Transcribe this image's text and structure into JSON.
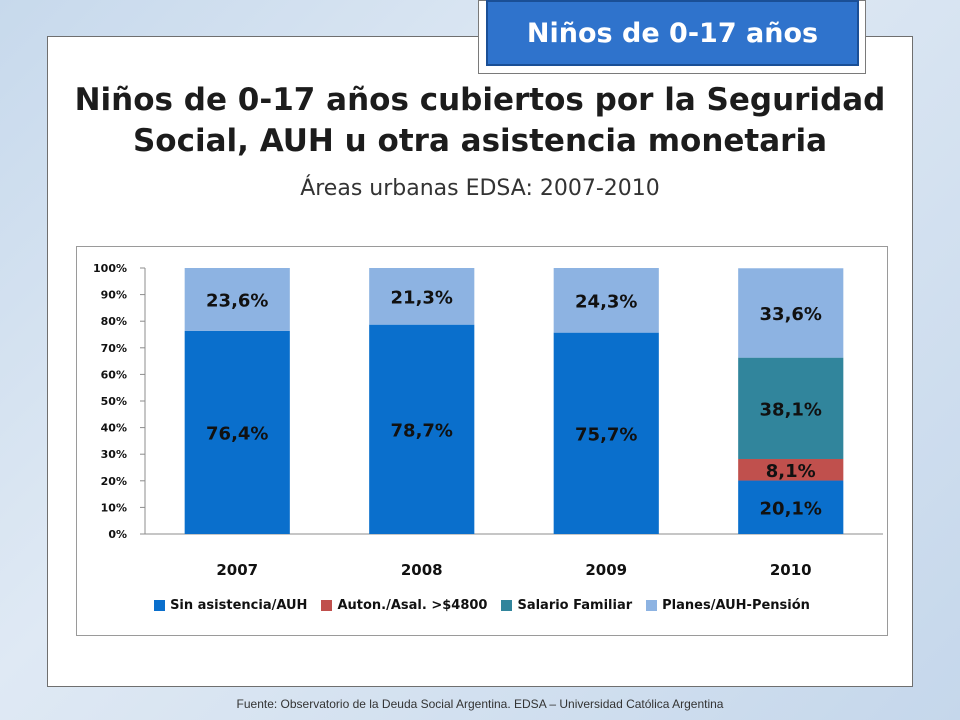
{
  "badge": {
    "label": "Niños de 0-17 años"
  },
  "title": "Niños de 0-17 años cubiertos por la Seguridad Social, AUH u otra asistencia monetaria",
  "subtitle": "Áreas urbanas EDSA: 2007-2010",
  "source": "Fuente:  Observatorio de  la Deuda Social Argentina. EDSA  – Universidad Católica Argentina",
  "colors": {
    "Sin asistencia/AUH": "#0a6fcc",
    "Auton./Asal. >$4800": "#c0504d",
    "Salario Familiar": "#31859c",
    "Planes/AUH-Pensión": "#8db3e2"
  },
  "chart_data": {
    "type": "bar",
    "stacked": true,
    "categories": [
      "2007",
      "2008",
      "2009",
      "2010"
    ],
    "series": [
      {
        "name": "Sin asistencia/AUH",
        "values": [
          76.4,
          78.7,
          75.7,
          20.1
        ],
        "labels": [
          "76,4%",
          "78,7%",
          "75,7%",
          "20,1%"
        ]
      },
      {
        "name": "Auton./Asal. >$4800",
        "values": [
          0,
          0,
          0,
          8.1
        ],
        "labels": [
          "",
          "",
          "",
          "8,1%"
        ]
      },
      {
        "name": "Salario Familiar",
        "values": [
          0,
          0,
          0,
          38.1
        ],
        "labels": [
          "",
          "",
          "",
          "38,1%"
        ]
      },
      {
        "name": "Planes/AUH-Pensión",
        "values": [
          23.6,
          21.3,
          24.3,
          33.6
        ],
        "labels": [
          "23,6%",
          "21,3%",
          "24,3%",
          "33,6%"
        ]
      }
    ],
    "y_ticks": [
      "0%",
      "10%",
      "20%",
      "30%",
      "40%",
      "50%",
      "60%",
      "70%",
      "80%",
      "90%",
      "100%"
    ],
    "ylim": [
      0,
      100
    ],
    "grid": false,
    "legend_position": "bottom"
  }
}
